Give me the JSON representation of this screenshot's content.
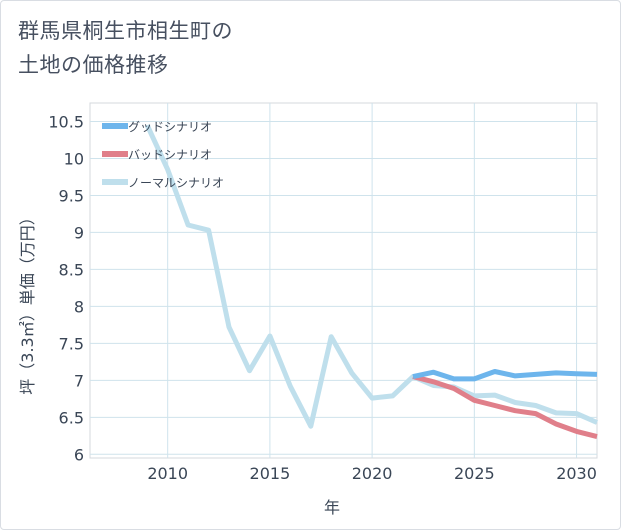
{
  "title": {
    "line1": "群馬県桐生市相生町の",
    "line2": "土地の価格推移"
  },
  "chart_data": {
    "type": "line",
    "xlabel": "年",
    "ylabel": "坪（3.3㎡）単価（万円）",
    "xlim": [
      2006.2,
      2031
    ],
    "ylim": [
      5.95,
      10.75
    ],
    "xticks": [
      2010,
      2015,
      2020,
      2025,
      2030
    ],
    "xtick_labels": [
      "2010",
      "2015",
      "2020",
      "2025",
      "2030"
    ],
    "yticks": [
      6,
      6.5,
      7,
      7.5,
      8,
      8.5,
      9,
      9.5,
      10,
      10.5
    ],
    "ytick_labels": [
      "6",
      "6.5",
      "7",
      "7.5",
      "8",
      "8.5",
      "9",
      "9.5",
      "10",
      "10.5"
    ],
    "grid": true,
    "legend_position": "top-left",
    "series": [
      {
        "name": "グッドシナリオ",
        "color": "#6db5ec",
        "x": [
          2022,
          2023,
          2024,
          2025,
          2026,
          2027,
          2028,
          2029,
          2030,
          2031
        ],
        "y": [
          7.05,
          7.11,
          7.02,
          7.02,
          7.12,
          7.06,
          7.08,
          7.1,
          7.09,
          7.08
        ]
      },
      {
        "name": "バッドシナリオ",
        "color": "#e07f8a",
        "x": [
          2022,
          2023,
          2024,
          2025,
          2026,
          2027,
          2028,
          2029,
          2030,
          2031
        ],
        "y": [
          7.05,
          6.98,
          6.89,
          6.73,
          6.66,
          6.59,
          6.55,
          6.41,
          6.31,
          6.24
        ]
      },
      {
        "name": "ノーマルシナリオ",
        "color": "#bfdfec",
        "x": [
          2009,
          2010,
          2011,
          2012,
          2013,
          2014,
          2015,
          2016,
          2017,
          2018,
          2019,
          2020,
          2021,
          2022,
          2023,
          2024,
          2025,
          2026,
          2027,
          2028,
          2029,
          2030,
          2031
        ],
        "y": [
          10.45,
          9.85,
          9.1,
          9.03,
          7.72,
          7.13,
          7.6,
          6.92,
          6.38,
          7.59,
          7.1,
          6.76,
          6.79,
          7.05,
          6.93,
          6.91,
          6.79,
          6.8,
          6.7,
          6.66,
          6.56,
          6.55,
          6.43
        ]
      }
    ]
  }
}
